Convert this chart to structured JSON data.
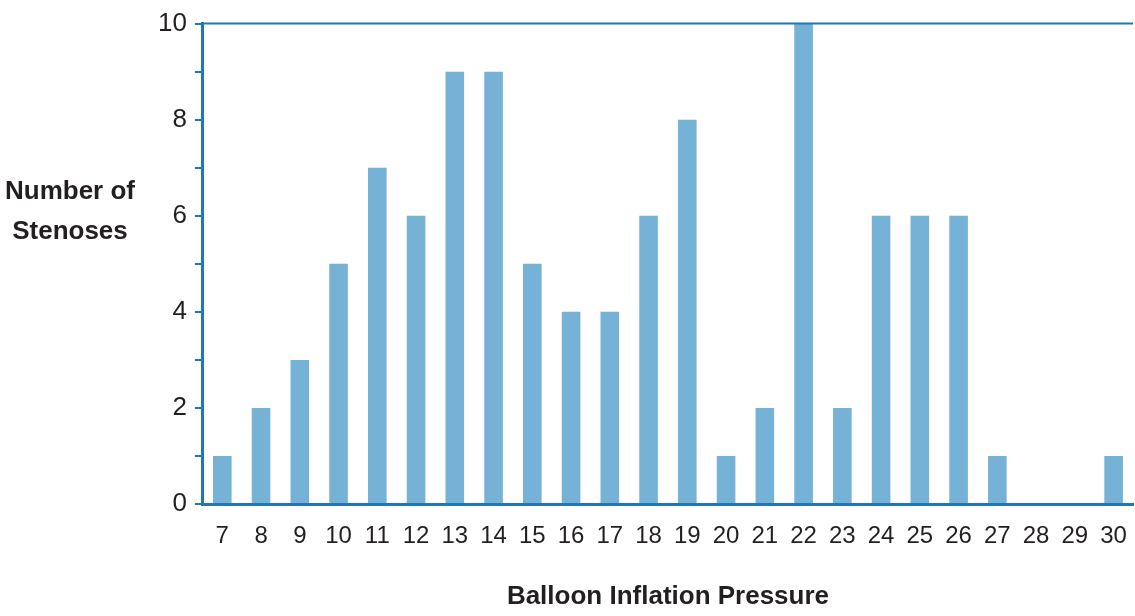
{
  "chart_data": {
    "type": "bar",
    "xlabel": "Balloon Inflation Pressure",
    "ylabel": "Number of Stenoses",
    "categories": [
      "7",
      "8",
      "9",
      "10",
      "11",
      "12",
      "13",
      "14",
      "15",
      "16",
      "17",
      "18",
      "19",
      "20",
      "21",
      "22",
      "23",
      "24",
      "25",
      "26",
      "27",
      "28",
      "29",
      "30"
    ],
    "values": [
      1,
      2,
      3,
      5,
      7,
      6,
      9,
      9,
      5,
      4,
      4,
      6,
      8,
      1,
      2,
      10,
      2,
      6,
      6,
      6,
      1,
      0,
      0,
      1
    ],
    "color": "#76b1d6",
    "ylim": [
      0,
      10
    ],
    "yticks": [
      0,
      {
        "value": 1,
        "label": null
      },
      2,
      {
        "value": 3,
        "label": null
      },
      4,
      {
        "value": 5,
        "label": null
      },
      6,
      {
        "value": 7,
        "label": null
      },
      8,
      {
        "value": 9,
        "label": null
      },
      10
    ],
    "grid": false,
    "legend": false
  }
}
